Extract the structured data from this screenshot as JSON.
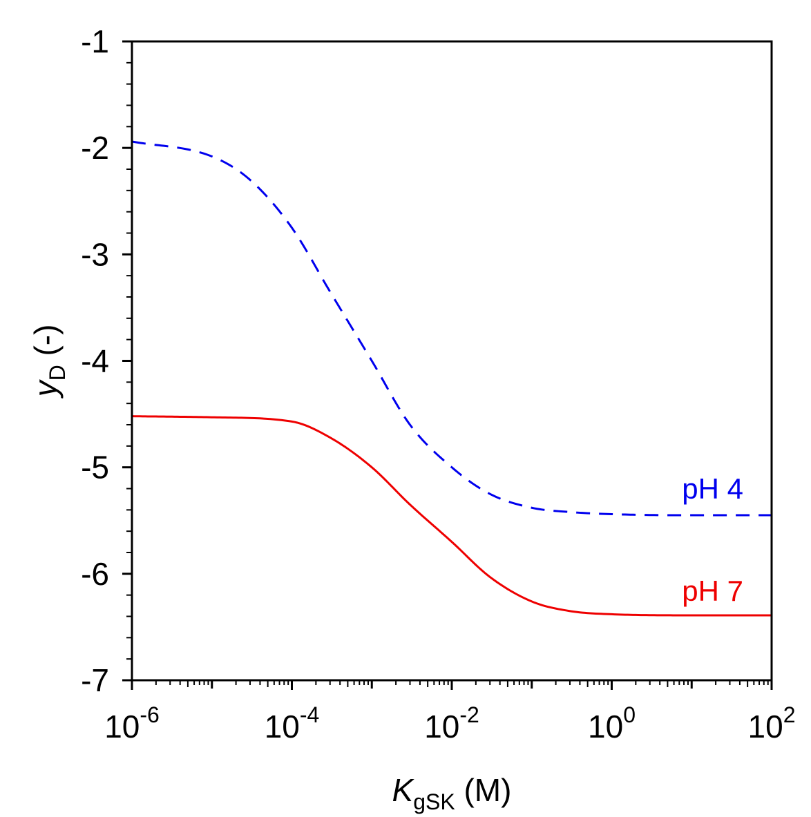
{
  "chart_data": {
    "type": "line",
    "x_scale": "log",
    "xlim": [
      1e-06,
      100
    ],
    "ylim": [
      -7,
      -1
    ],
    "x_ticks": [
      {
        "value": 1e-06,
        "base": "10",
        "exp": "-6"
      },
      {
        "value": 0.0001,
        "base": "10",
        "exp": "-4"
      },
      {
        "value": 0.01,
        "base": "10",
        "exp": "-2"
      },
      {
        "value": 1,
        "base": "10",
        "exp": "0"
      },
      {
        "value": 100,
        "base": "10",
        "exp": "2"
      }
    ],
    "y_ticks": [
      {
        "value": -1,
        "label": "-1"
      },
      {
        "value": -2,
        "label": "-2"
      },
      {
        "value": -3,
        "label": "-3"
      },
      {
        "value": -4,
        "label": "-4"
      },
      {
        "value": -5,
        "label": "-5"
      },
      {
        "value": -6,
        "label": "-6"
      },
      {
        "value": -7,
        "label": "-7"
      }
    ],
    "xlabel": {
      "symbol": "K",
      "subscript": "gSK",
      "unit": " (M)"
    },
    "ylabel": {
      "symbol": "y",
      "subscript": "D",
      "unit": " (-)"
    },
    "grid": false,
    "series": [
      {
        "name": "pH 4",
        "label": "pH 4",
        "color": "#0000ee",
        "style": "dashed",
        "x": [
          1e-06,
          1e-05,
          3e-05,
          0.0001,
          0.0003,
          0.001,
          0.003,
          0.01,
          0.03,
          0.1,
          0.3,
          1,
          10,
          100
        ],
        "y": [
          -1.94,
          -2.08,
          -2.3,
          -2.75,
          -3.35,
          -4.0,
          -4.6,
          -5.0,
          -5.25,
          -5.38,
          -5.42,
          -5.44,
          -5.45,
          -5.45
        ]
      },
      {
        "name": "pH 7",
        "label": "pH 7",
        "color": "#ee0000",
        "style": "solid",
        "x": [
          1e-06,
          1e-05,
          0.0001,
          0.0003,
          0.001,
          0.003,
          0.01,
          0.03,
          0.1,
          0.3,
          1,
          10,
          100
        ],
        "y": [
          -4.52,
          -4.53,
          -4.57,
          -4.72,
          -5.0,
          -5.35,
          -5.7,
          -6.03,
          -6.26,
          -6.35,
          -6.38,
          -6.39,
          -6.39
        ]
      }
    ]
  }
}
